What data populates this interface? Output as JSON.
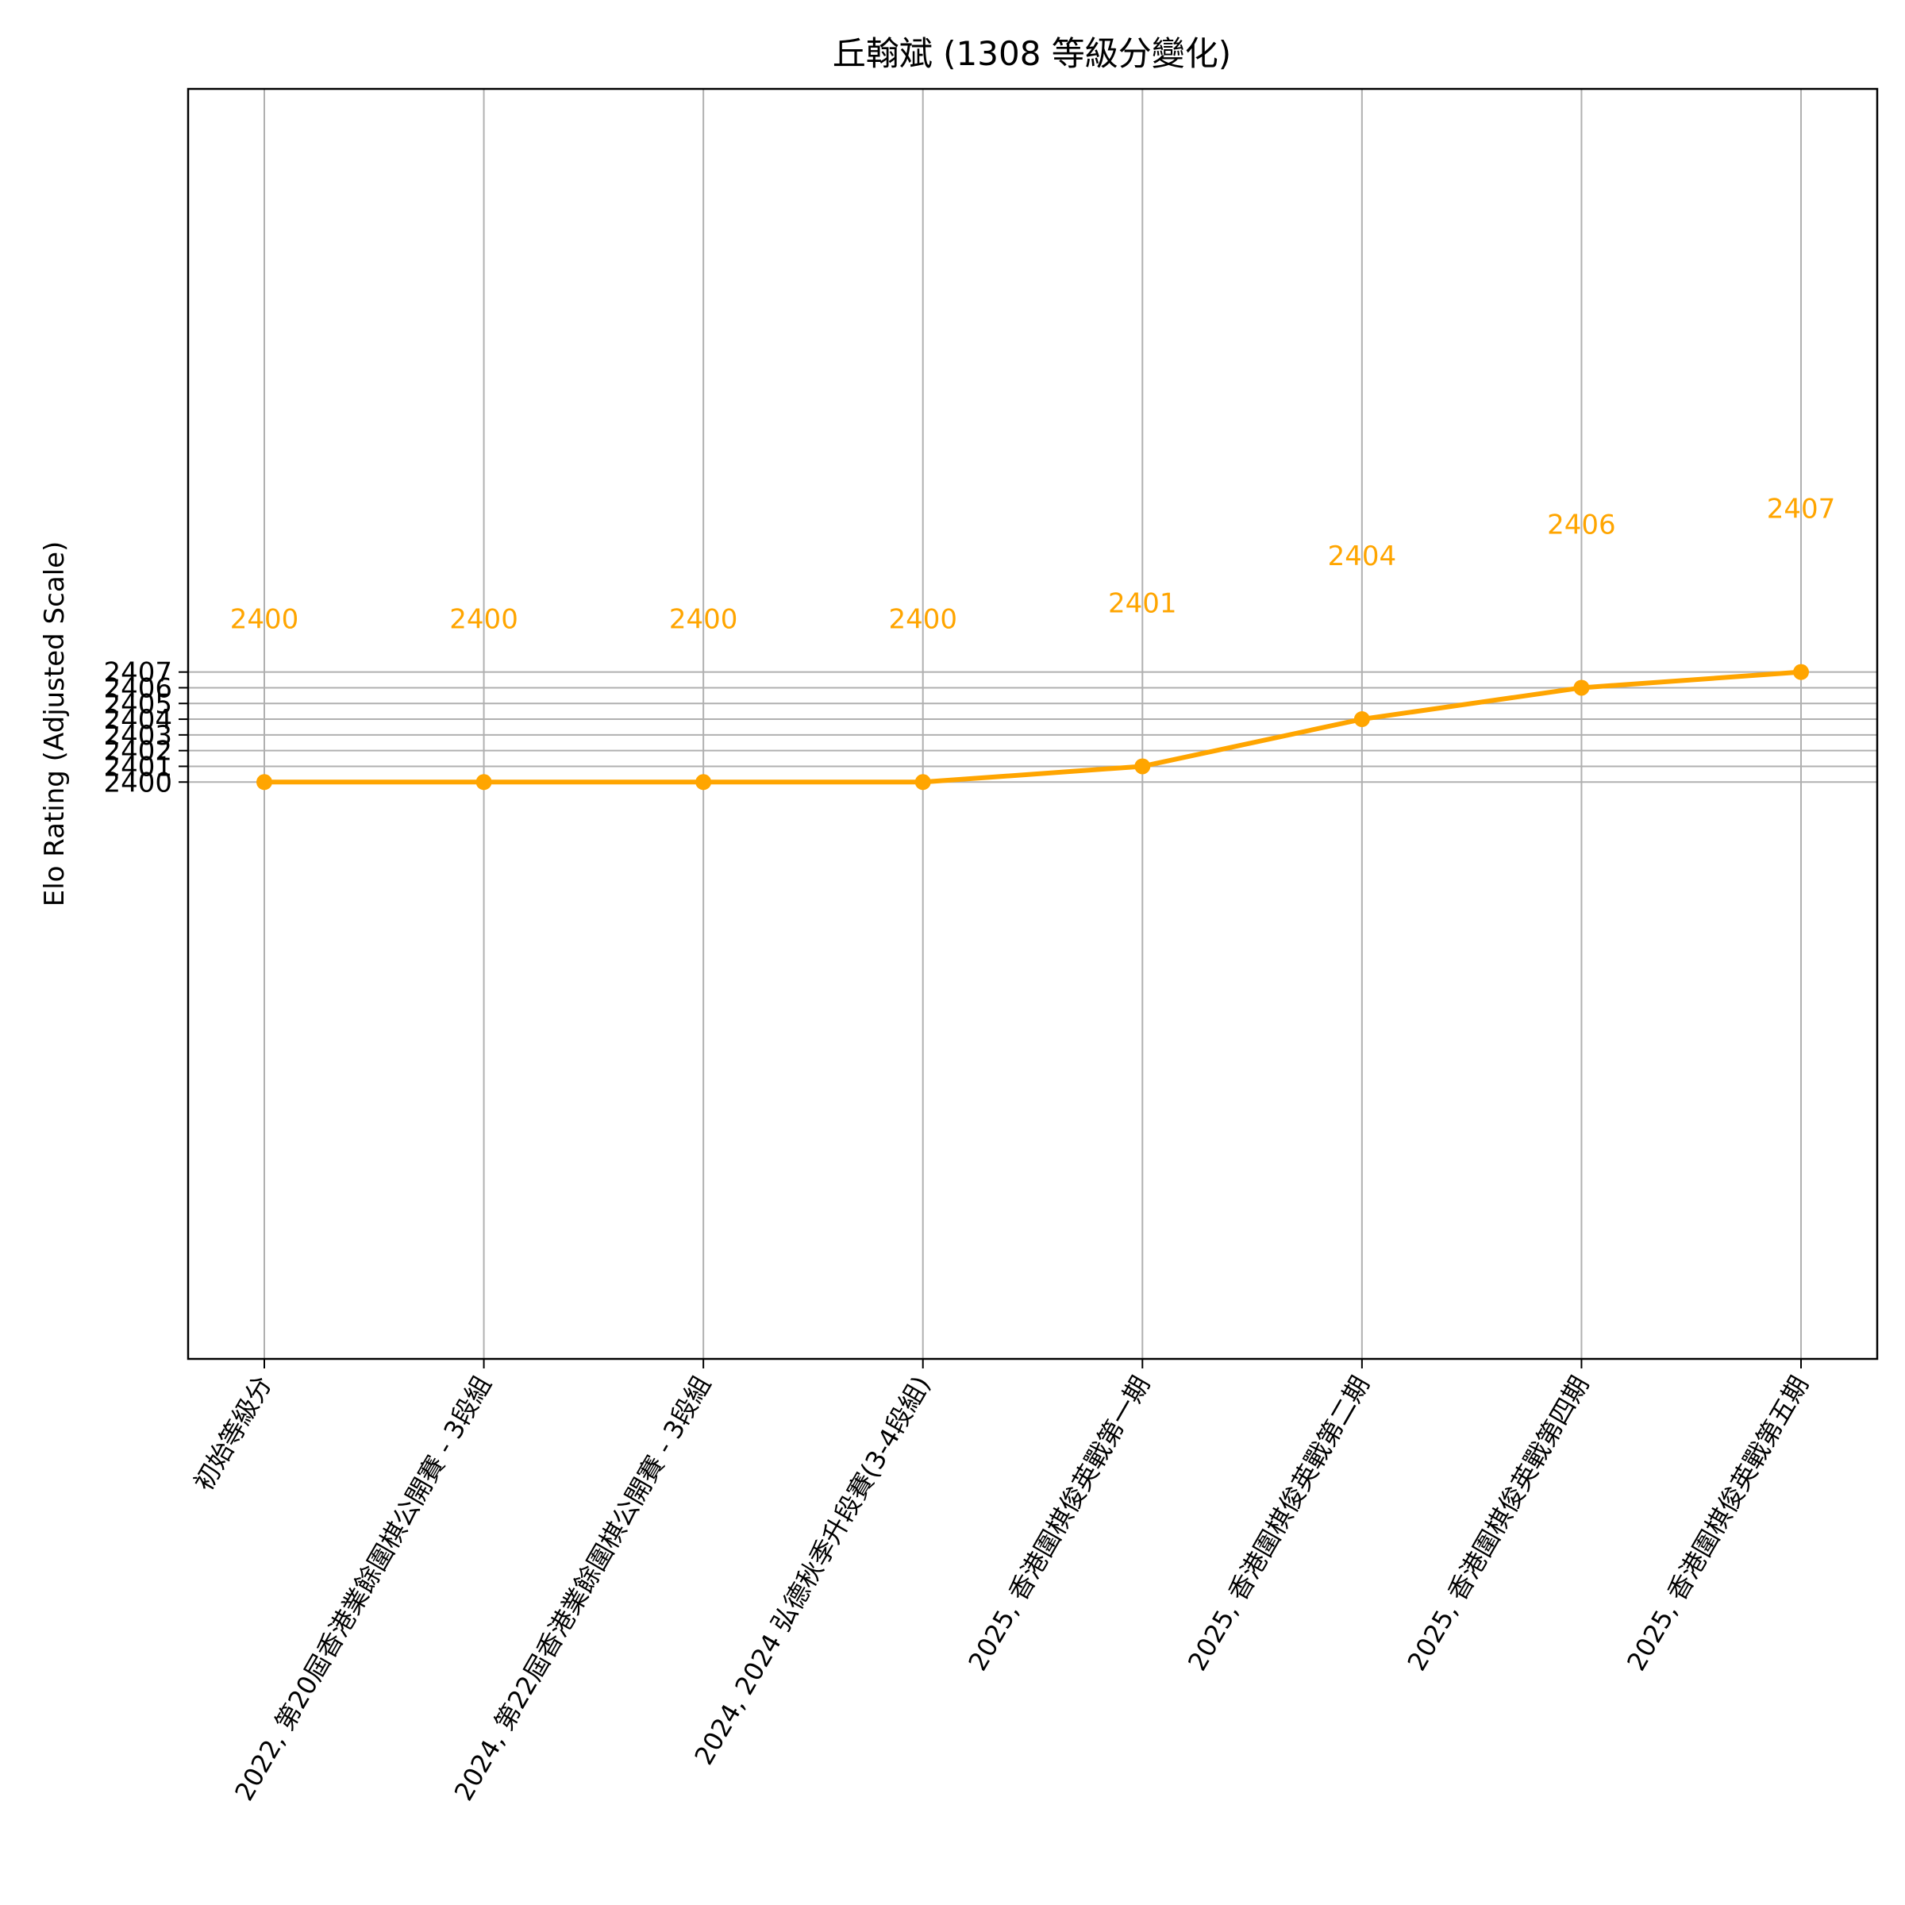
{
  "chart_data": {
    "type": "line",
    "title": "丘翰斌 (1308 等級分變化)",
    "xlabel": "",
    "ylabel": "Elo Rating (Adjusted Scale)",
    "categories": [
      "初始等級分",
      "2022, 第20屆香港業餘圍棋公開賽 - 3段組",
      "2024, 第22屆香港業餘圍棋公開賽 - 3段組",
      "2024, 2024 弘德秋季升段賽(3-4段組)",
      "2025, 香港圍棋俊英戰第一期",
      "2025, 香港圍棋俊英戰第二期",
      "2025, 香港圍棋俊英戰第四期",
      "2025, 香港圍棋俊英戰第五期"
    ],
    "series": [
      {
        "values": [
          2400,
          2400,
          2400,
          2400,
          2401,
          2404,
          2406,
          2407
        ],
        "data_labels": [
          "2400",
          "2400",
          "2400",
          "2400",
          "2401",
          "2404",
          "2406",
          "2407"
        ]
      }
    ],
    "yticks": [
      2400,
      2401,
      2402,
      2403,
      2404,
      2405,
      2406,
      2407
    ],
    "ytick_labels": [
      "2400",
      "2401",
      "2402",
      "2403",
      "2404",
      "2405",
      "2406",
      "2407"
    ],
    "ylim": [
      2363.3,
      2444.1
    ],
    "grid": true,
    "legend": "none",
    "colors": {
      "line": "#FFA500",
      "grid": "#b0b0b0",
      "axes": "#000000"
    }
  }
}
